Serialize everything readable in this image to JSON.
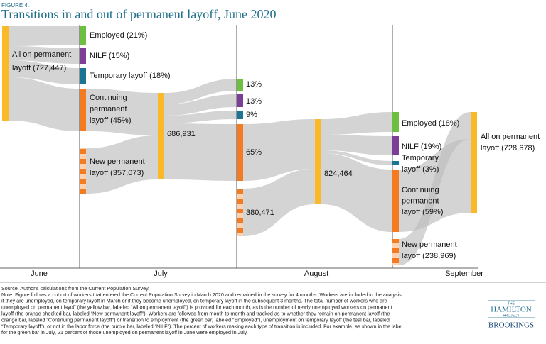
{
  "header": {
    "figure_label": "FIGURE 4.",
    "title": "Transitions in and out of permanent layoff, June 2020"
  },
  "columns": [
    "June",
    "July",
    "August",
    "September"
  ],
  "nodes": [
    {
      "label_lines": [
        "All on permanent",
        "layoff  (727,447)"
      ]
    },
    {
      "label_lines": [
        "Employed (21%)"
      ]
    },
    {
      "label_lines": [
        "NILF (15%)"
      ]
    },
    {
      "label_lines": [
        "Temporary layoff (18%)"
      ]
    },
    {
      "label_lines": [
        "Continuing",
        "permanent",
        "layoff (45%)"
      ]
    },
    {
      "label_lines": [
        "New permanent",
        "layoff (357,073)"
      ]
    },
    {
      "label_lines": [
        "686,931"
      ]
    },
    {
      "label_lines": [
        "13%"
      ]
    },
    {
      "label_lines": [
        "13%"
      ]
    },
    {
      "label_lines": [
        "9%"
      ]
    },
    {
      "label_lines": [
        "65%"
      ]
    },
    {
      "label_lines": [
        "380,471"
      ]
    },
    {
      "label_lines": [
        "824,464"
      ]
    },
    {
      "label_lines": [
        "Employed (18%)"
      ]
    },
    {
      "label_lines": [
        "NILF (19%)"
      ]
    },
    {
      "label_lines": [
        "Temporary",
        "layoff (3%)"
      ]
    },
    {
      "label_lines": [
        "Continuing",
        "permanent",
        "layoff (59%)"
      ]
    },
    {
      "label_lines": [
        "New permanent",
        "layoff (238,969)"
      ]
    },
    {
      "label_lines": [
        "All on permanent",
        "layoff  (728,678)"
      ]
    }
  ],
  "footer": {
    "note_lines": [
      "Source: Author's calculations from the Current Population Survey.",
      "Note: Figure follows a cohort of workers that entered the Current Population Survey in March 2020 and remained in the survey for 4 months.  Workers are included in the analysis",
      "if they are unemployed, on temporary layoff in March or if they become unemployed, on temporary layoff in the subsequent 3 months. The total number of workers who are",
      "unemployed on permanent layoff (the yellow bar, labeled “All on permanent layoff”) is provided for each month, as is the number of newly unemployed workers on permanent",
      "layoff (the orange checked bar, labeled “New permanent layoff”).  Workers are followed from month to month and tracked as to whether they remain on permanent layoff (the",
      "orange bar, labeled “Continuing permanent layoff”) or transition to employment (the green bar, labeled “Employed”), unemployment on temporary layoff (the teal bar, labeled",
      "“Temporary layoff”), or not in the labor force (the purple bar, labeled “NILF”).  The percent of workers making each type of transition is included. For example, as shown in the label",
      "for the green bar in July, 21 percent of those unemployed on permanent layoff in June were employed in July."
    ]
  },
  "logo": {
    "the": "THE",
    "name": "HAMILTON",
    "project": "PROJECT",
    "org": "BROOKINGS"
  }
}
